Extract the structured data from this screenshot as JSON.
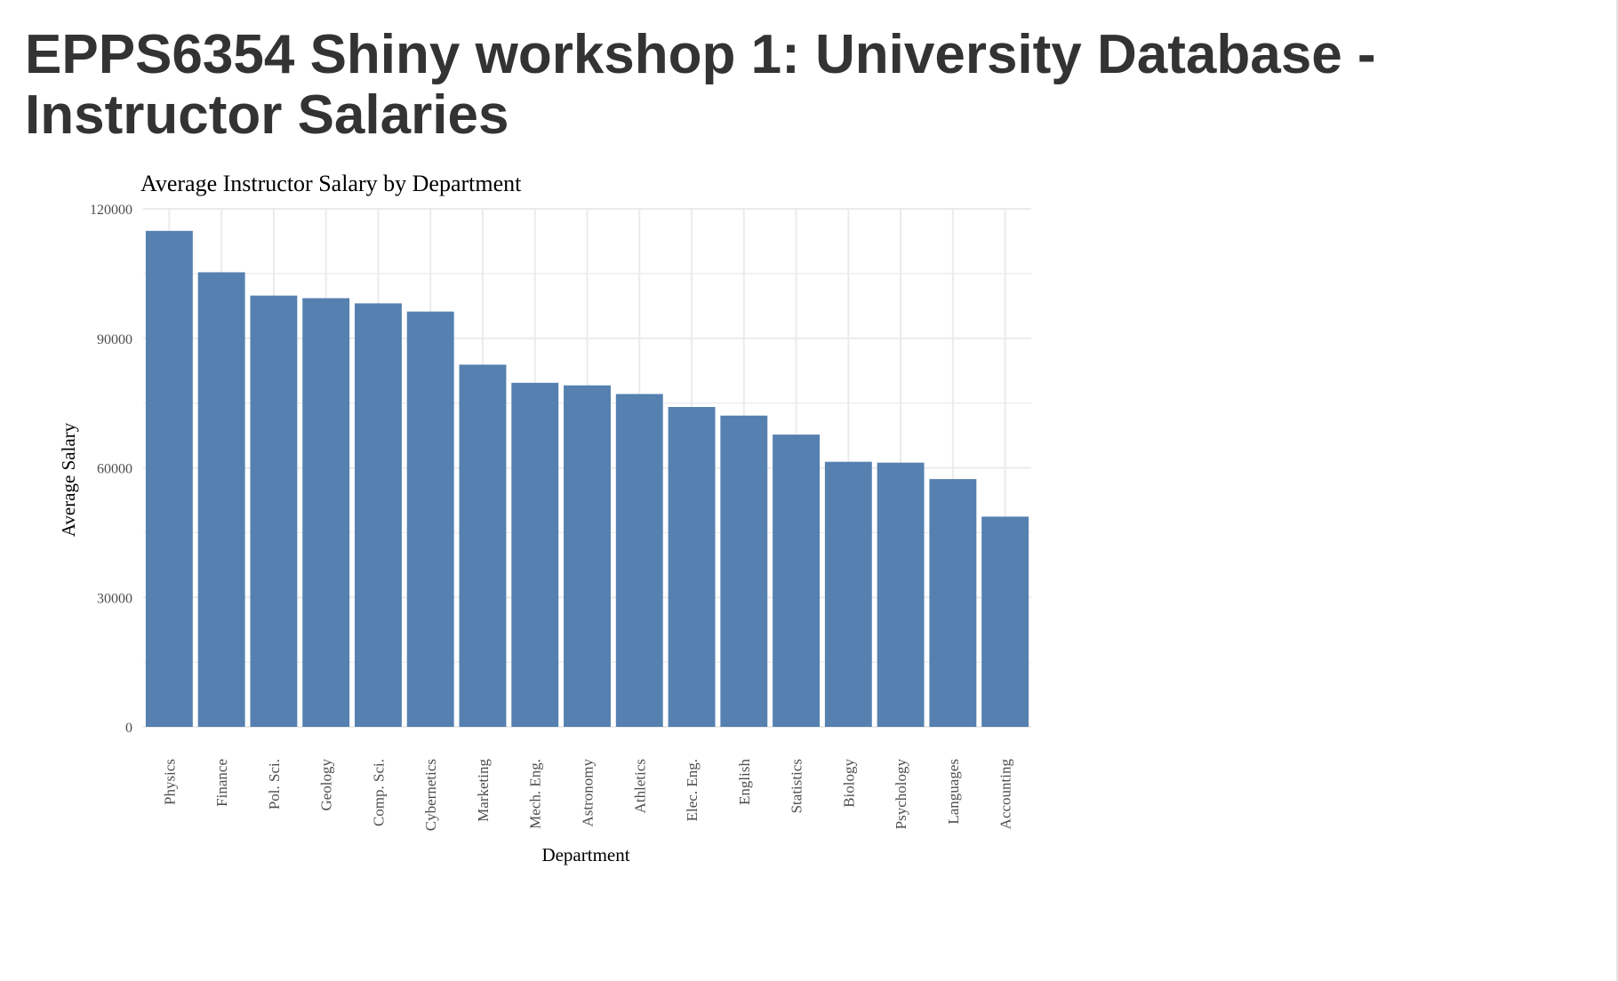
{
  "header": {
    "title": "EPPS6354 Shiny workshop 1: University Database - Instructor Salaries"
  },
  "chart_data": {
    "type": "bar",
    "title": "Average Instructor Salary by Department",
    "xlabel": "Department",
    "ylabel": "Average Salary",
    "categories": [
      "Physics",
      "Finance",
      "Pol. Sci.",
      "Geology",
      "Comp. Sci.",
      "Cybernetics",
      "Marketing",
      "Mech. Eng.",
      "Astronomy",
      "Athletics",
      "Elec. Eng.",
      "English",
      "Statistics",
      "Biology",
      "Psychology",
      "Languages",
      "Accounting"
    ],
    "values": [
      114890,
      105300,
      99900,
      99300,
      98100,
      96200,
      83900,
      79700,
      79100,
      77100,
      74100,
      72100,
      67700,
      61400,
      61200,
      57400,
      48700
    ],
    "ylim": [
      0,
      120000
    ],
    "yticks": [
      0,
      30000,
      60000,
      90000,
      120000
    ],
    "ytick_labels": [
      "0",
      "30000",
      "60000",
      "90000",
      "120000"
    ],
    "grid": true,
    "bar_color": "#5580b0",
    "grid_color": "#ebebeb"
  }
}
